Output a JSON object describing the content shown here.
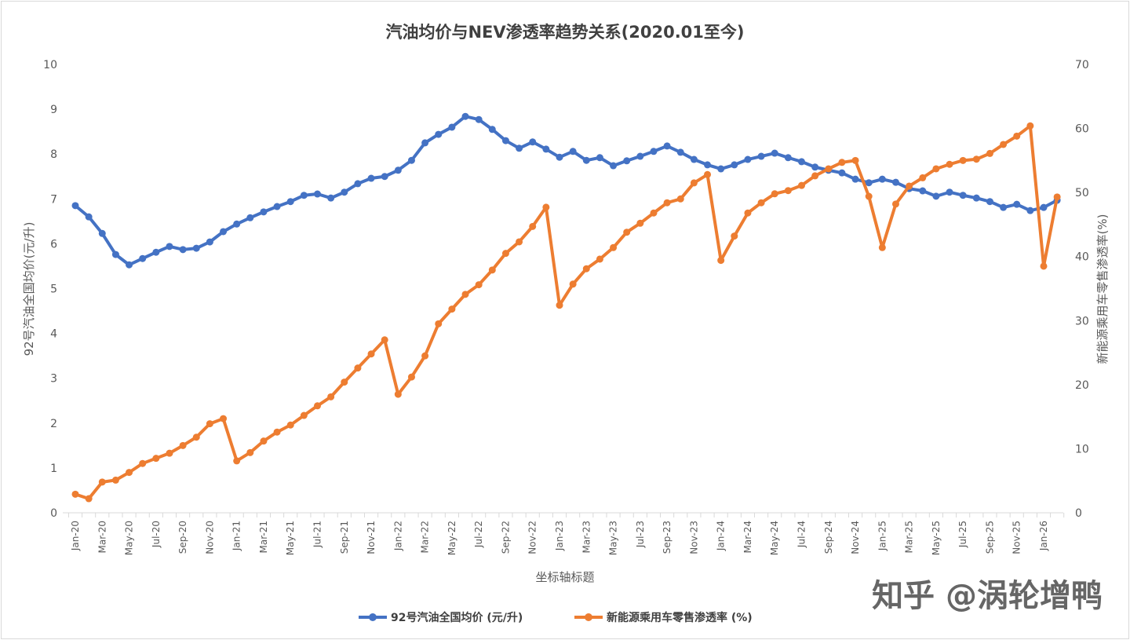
{
  "chart_data": {
    "type": "line",
    "title": "汽油均价与NEV渗透率趋势关系(2020.01至今)",
    "xlabel": "坐标轴标题",
    "ylabel": "92号汽油全国均价(元/升)",
    "y2label": "新能源乘用车零售渗透率(%)",
    "ylim": [
      0,
      10
    ],
    "y2lim": [
      0,
      70
    ],
    "yticks": [
      "0",
      "1",
      "2",
      "3",
      "4",
      "5",
      "6",
      "7",
      "8",
      "9",
      "10"
    ],
    "y2ticks": [
      "0",
      "10",
      "20",
      "30",
      "40",
      "50",
      "60",
      "70"
    ],
    "grid": false,
    "legend_position": "bottom",
    "xtick_labels": [
      "Jan-20",
      "Mar-20",
      "May-20",
      "Jul-20",
      "Sep-20",
      "Nov-20",
      "Jan-21",
      "Mar-21",
      "May-21",
      "Jul-21",
      "Sep-21",
      "Nov-21",
      "Jan-22",
      "Mar-22",
      "May-22",
      "Jul-22",
      "Sep-22",
      "Nov-22",
      "Jan-23",
      "Mar-23",
      "May-23",
      "Jul-23",
      "Sep-23",
      "Nov-23",
      "Jan-24",
      "Mar-24",
      "May-24",
      "Jul-24",
      "Sep-24",
      "Nov-24",
      "Jan-25",
      "Mar-25",
      "May-25",
      "Jul-25",
      "Sep-25",
      "Nov-25",
      "Jan-26"
    ],
    "x": [
      "Jan-20",
      "Feb-20",
      "Mar-20",
      "Apr-20",
      "May-20",
      "Jun-20",
      "Jul-20",
      "Aug-20",
      "Sep-20",
      "Oct-20",
      "Nov-20",
      "Dec-20",
      "Jan-21",
      "Feb-21",
      "Mar-21",
      "Apr-21",
      "May-21",
      "Jun-21",
      "Jul-21",
      "Aug-21",
      "Sep-21",
      "Oct-21",
      "Nov-21",
      "Dec-21",
      "Jan-22",
      "Feb-22",
      "Mar-22",
      "Apr-22",
      "May-22",
      "Jun-22",
      "Jul-22",
      "Aug-22",
      "Sep-22",
      "Oct-22",
      "Nov-22",
      "Dec-22",
      "Jan-23",
      "Feb-23",
      "Mar-23",
      "Apr-23",
      "May-23",
      "Jun-23",
      "Jul-23",
      "Aug-23",
      "Sep-23",
      "Oct-23",
      "Nov-23",
      "Dec-23",
      "Jan-24",
      "Feb-24",
      "Mar-24",
      "Apr-24",
      "May-24",
      "Jun-24",
      "Jul-24",
      "Aug-24",
      "Sep-24",
      "Oct-24",
      "Nov-24",
      "Dec-24",
      "Jan-25",
      "Feb-25",
      "Mar-25",
      "Apr-25",
      "May-25",
      "Jun-25",
      "Jul-25",
      "Aug-25",
      "Sep-25",
      "Oct-25",
      "Nov-25",
      "Dec-25",
      "Jan-26",
      "Feb-26"
    ],
    "series": [
      {
        "name": "92号汽油全国均价 (元/升)",
        "axis": "left",
        "color": "#4472c4",
        "values": [
          6.85,
          6.6,
          6.23,
          5.76,
          5.53,
          5.67,
          5.81,
          5.94,
          5.87,
          5.9,
          6.04,
          6.27,
          6.44,
          6.58,
          6.71,
          6.83,
          6.94,
          7.08,
          7.11,
          7.02,
          7.15,
          7.34,
          7.46,
          7.5,
          7.64,
          7.86,
          8.25,
          8.44,
          8.6,
          8.84,
          8.77,
          8.55,
          8.3,
          8.13,
          8.27,
          8.11,
          7.93,
          8.06,
          7.86,
          7.92,
          7.74,
          7.85,
          7.95,
          8.06,
          8.18,
          8.04,
          7.88,
          7.76,
          7.67,
          7.76,
          7.88,
          7.95,
          8.02,
          7.92,
          7.83,
          7.71,
          7.64,
          7.58,
          7.44,
          7.36,
          7.44,
          7.37,
          7.23,
          7.18,
          7.06,
          7.15,
          7.08,
          7.02,
          6.94,
          6.81,
          6.88,
          6.74,
          6.81,
          6.97
        ]
      },
      {
        "name": "新能源乘用车零售渗透率 (%)",
        "axis": "right",
        "color": "#ed7d31",
        "values": [
          2.9,
          2.2,
          4.8,
          5.1,
          6.3,
          7.7,
          8.5,
          9.3,
          10.5,
          11.8,
          13.9,
          14.7,
          8.1,
          9.4,
          11.2,
          12.6,
          13.7,
          15.2,
          16.7,
          18.1,
          20.4,
          22.6,
          24.8,
          27.0,
          18.5,
          21.2,
          24.5,
          29.5,
          31.8,
          34.1,
          35.6,
          37.9,
          40.5,
          42.3,
          44.7,
          47.7,
          32.4,
          35.7,
          38.1,
          39.6,
          41.4,
          43.8,
          45.2,
          46.8,
          48.4,
          49.0,
          51.5,
          52.8,
          39.4,
          43.2,
          46.8,
          48.4,
          49.8,
          50.3,
          51.1,
          52.6,
          53.7,
          54.7,
          55.0,
          49.4,
          41.4,
          48.2,
          51.0,
          52.3,
          53.7,
          54.4,
          55.0,
          55.2,
          56.1,
          57.5,
          58.8,
          60.4,
          38.5,
          49.3
        ]
      }
    ]
  },
  "watermark": "知乎 @涡轮增鸭"
}
